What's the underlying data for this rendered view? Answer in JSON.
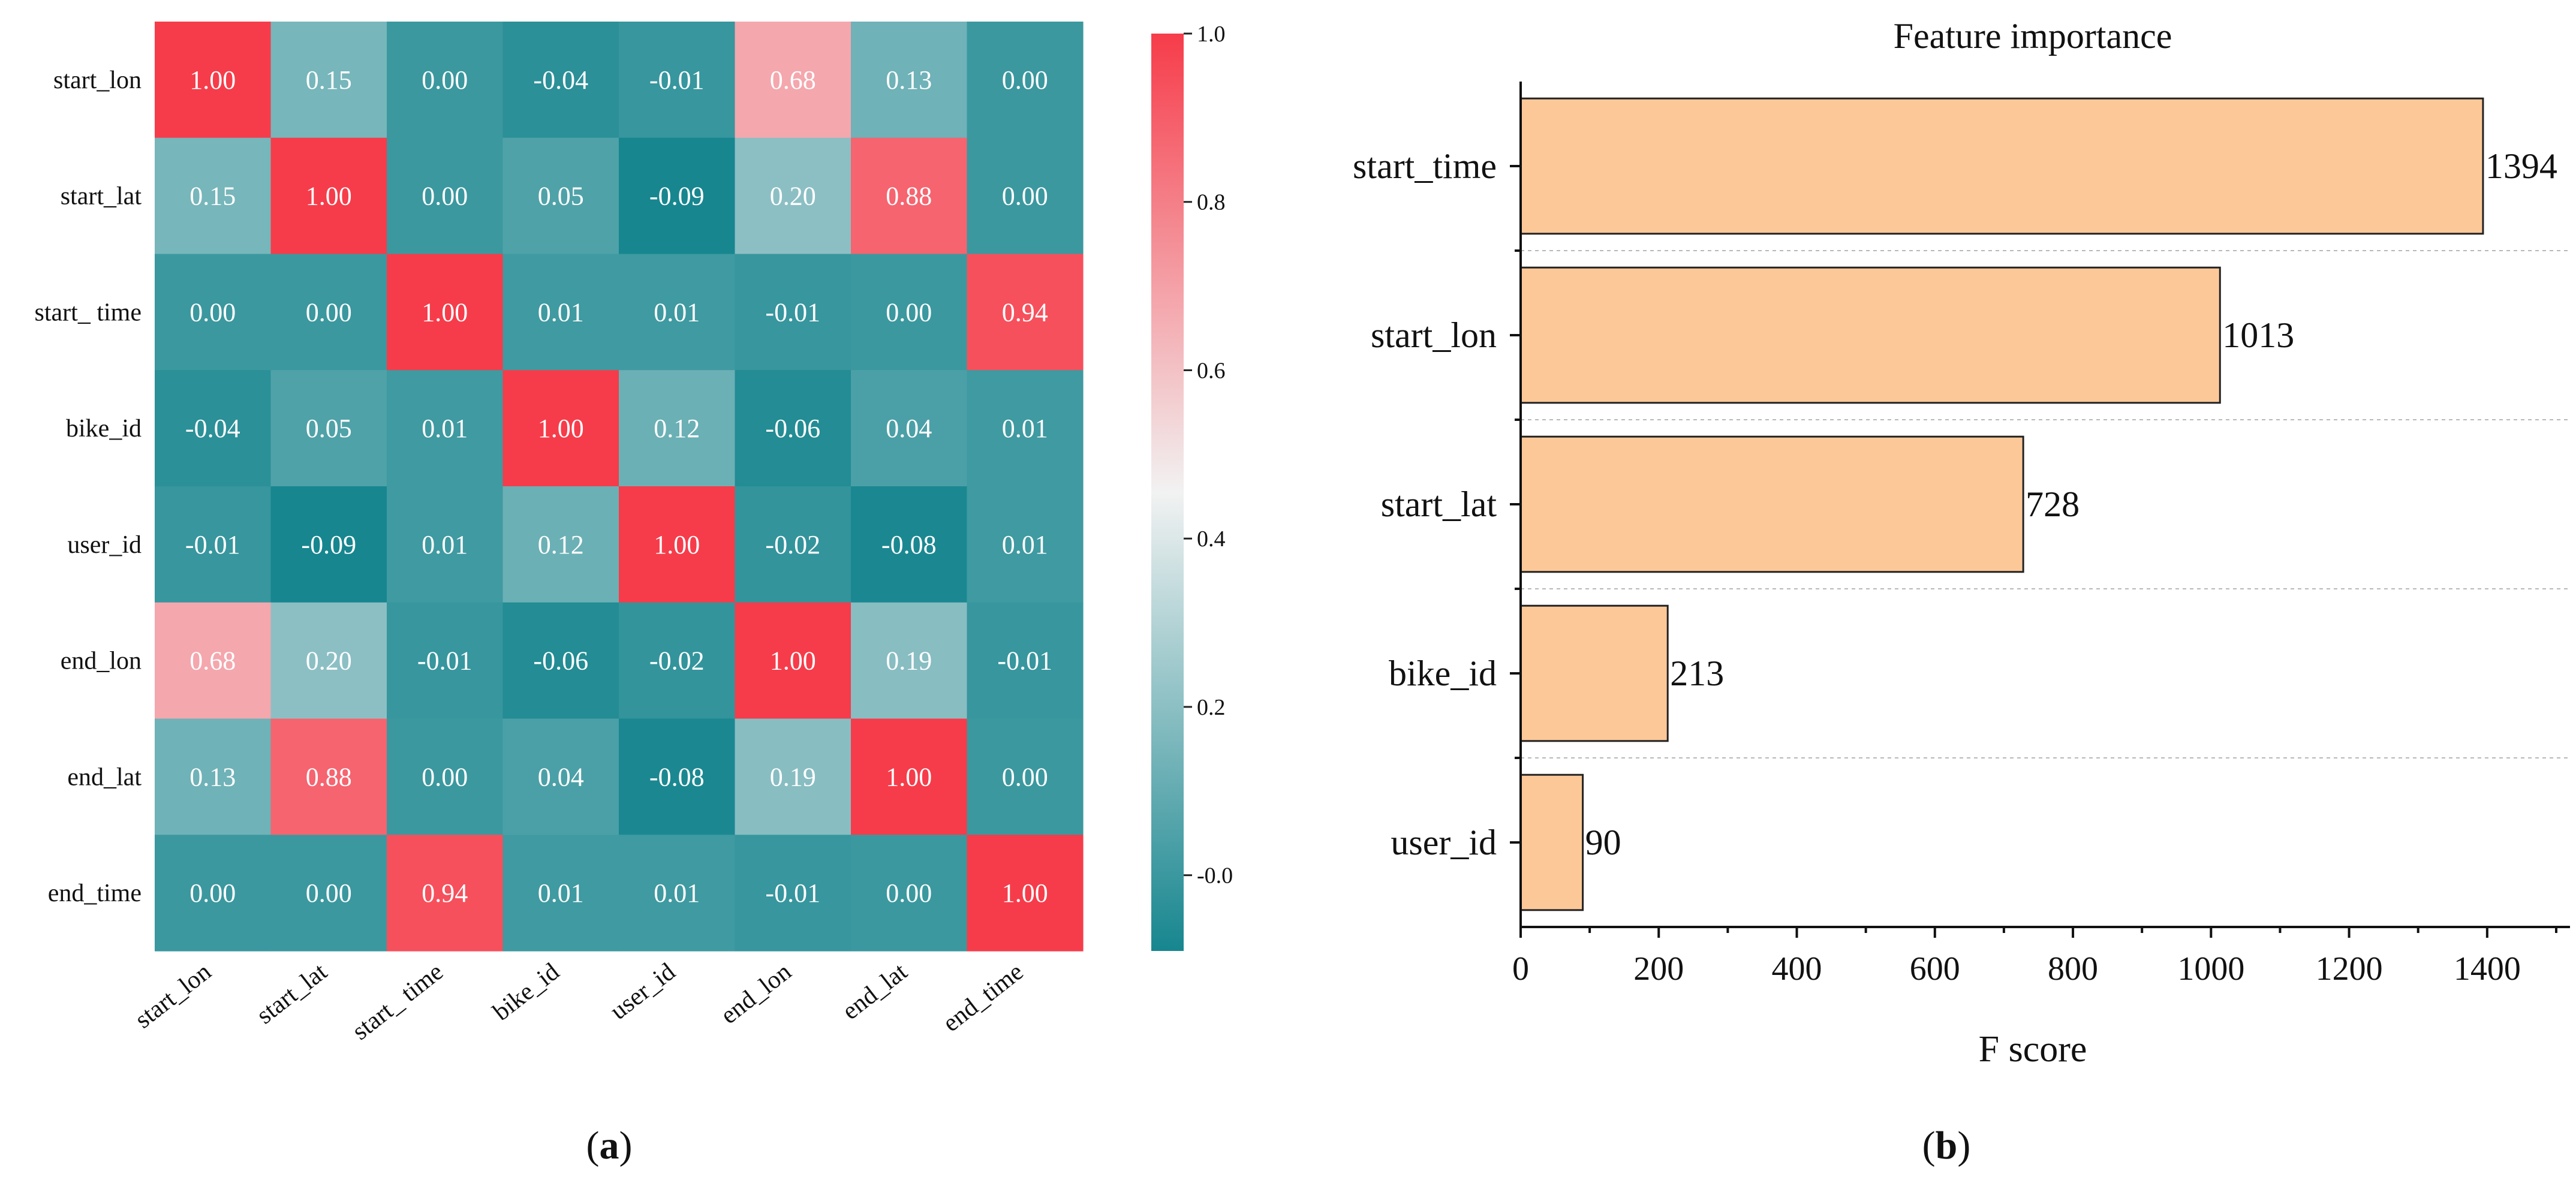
{
  "chart_data": [
    {
      "type": "heatmap",
      "panel_label": {
        "open": "(",
        "letter": "a",
        "close": ")"
      },
      "rows": [
        "start_lon",
        "start_lat",
        "start_ time",
        "bike_id",
        "user_id",
        "end_lon",
        "end_lat",
        "end_time"
      ],
      "columns": [
        "start_lon",
        "start_lat",
        "start_ time",
        "bike_id",
        "user_id",
        "end_lon",
        "end_lat",
        "end_time"
      ],
      "values": [
        [
          1.0,
          0.15,
          -0.0,
          -0.04,
          -0.01,
          0.68,
          0.13,
          -0.0
        ],
        [
          0.15,
          1.0,
          0.0,
          0.05,
          -0.09,
          0.2,
          0.88,
          0.0
        ],
        [
          -0.0,
          0.0,
          1.0,
          0.01,
          0.01,
          -0.01,
          0.0,
          0.94
        ],
        [
          -0.04,
          0.05,
          0.01,
          1.0,
          0.12,
          -0.06,
          0.04,
          0.01
        ],
        [
          -0.01,
          -0.09,
          0.01,
          0.12,
          1.0,
          -0.02,
          -0.08,
          0.01
        ],
        [
          0.68,
          0.2,
          -0.01,
          -0.06,
          -0.02,
          1.0,
          0.19,
          -0.01
        ],
        [
          0.13,
          0.88,
          0.0,
          0.04,
          -0.08,
          0.19,
          1.0,
          0.0
        ],
        [
          -0.0,
          0.0,
          0.94,
          0.01,
          0.01,
          -0.01,
          0.0,
          1.0
        ]
      ],
      "colorbar": {
        "vmin": -0.09,
        "vmax": 1.0,
        "ticks": [
          -0.0,
          0.2,
          0.4,
          0.6,
          0.8,
          1.0
        ],
        "tick_labels": [
          "-0.0",
          "0.2",
          "0.4",
          "0.6",
          "0.8",
          "1.0"
        ],
        "colors": {
          "low": "#17868f",
          "mid": "#f2f2f2",
          "high": "#f63c4a"
        }
      }
    },
    {
      "type": "bar",
      "orientation": "horizontal",
      "panel_label": {
        "open": "(",
        "letter": "b",
        "close": ")"
      },
      "title": "Feature importance",
      "xlabel": "F score",
      "ylabel": "",
      "categories": [
        "start_time",
        "start_lon",
        "start_lat",
        "bike_id",
        "user_id"
      ],
      "values": [
        1394,
        1013,
        728,
        213,
        90
      ],
      "value_labels": [
        "1394",
        "1013",
        "728",
        "213",
        "90"
      ],
      "xlim": [
        0,
        1520
      ],
      "xticks": [
        0,
        200,
        400,
        600,
        800,
        1000,
        1200,
        1400
      ],
      "xtick_labels": [
        "0",
        "200",
        "400",
        "600",
        "800",
        "1000",
        "1200",
        "1400"
      ],
      "grid": "y-dashed",
      "bar_color": "#fdc898",
      "bar_edge_color": "#222222"
    }
  ]
}
